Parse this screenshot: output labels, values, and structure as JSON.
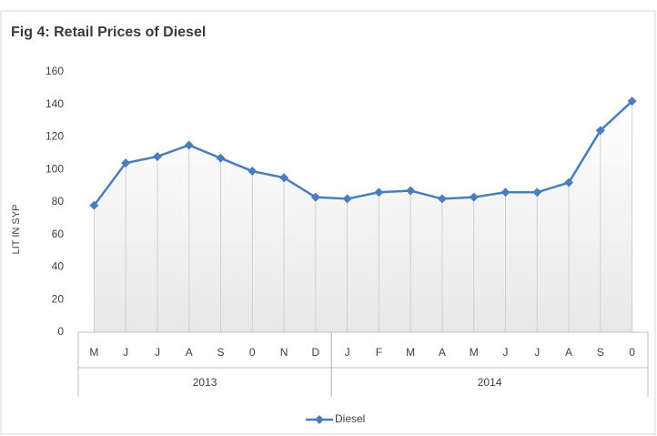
{
  "chart_data": {
    "type": "line",
    "title": "Fig 4: Retail Prices of Diesel",
    "y_label": "LIT IN SYP",
    "category_groups": [
      {
        "label": "2013",
        "categories": [
          "M",
          "J",
          "J",
          "A",
          "S",
          "0",
          "N",
          "D"
        ]
      },
      {
        "label": "2014",
        "categories": [
          "J",
          "F",
          "M",
          "A",
          "M",
          "J",
          "J",
          "A",
          "S",
          "0"
        ]
      }
    ],
    "series": [
      {
        "name": "Diesel",
        "color": "#4a7ebb",
        "values": [
          78,
          104,
          108,
          115,
          107,
          99,
          95,
          83,
          82,
          86,
          87,
          82,
          83,
          86,
          86,
          92,
          124,
          142
        ]
      }
    ],
    "ylim": [
      0,
      160
    ],
    "yticks": [
      0,
      20,
      40,
      60,
      80,
      100,
      120,
      140,
      160
    ],
    "legend": "bottom"
  }
}
